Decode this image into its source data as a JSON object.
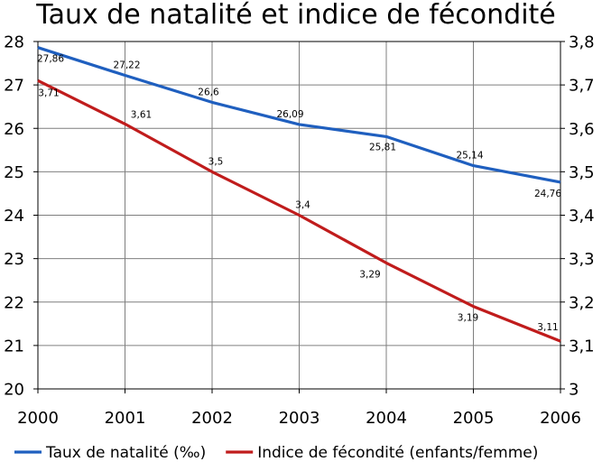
{
  "chart_data": {
    "type": "line",
    "title": "Taux de natalité et indice de fécondité",
    "x": [
      2000,
      2001,
      2002,
      2003,
      2004,
      2005,
      2006
    ],
    "xtick_labels": [
      "2000",
      "2001",
      "2002",
      "2003",
      "2004",
      "2005",
      "2006"
    ],
    "ylim_left": [
      20,
      28
    ],
    "ytick_labels_left": [
      "20",
      "21",
      "22",
      "23",
      "24",
      "25",
      "26",
      "27",
      "28"
    ],
    "ylim_right": [
      3.0,
      3.8
    ],
    "ytick_labels_right": [
      "3",
      "3,1",
      "3,2",
      "3,3",
      "3,4",
      "3,5",
      "3,6",
      "3,7",
      "3,8"
    ],
    "grid": true,
    "legend_position": "bottom",
    "series": [
      {
        "name": "Taux de natalité (‰)",
        "axis": "left",
        "color": "#1f5fbf",
        "values": [
          27.86,
          27.22,
          26.6,
          26.09,
          25.81,
          25.14,
          24.76
        ],
        "labels": [
          "27,86",
          "27,22",
          "26,6",
          "26,09",
          "25,81",
          "25,14",
          "24,76"
        ]
      },
      {
        "name": "Indice de fécondité (enfants/femme)",
        "axis": "right",
        "color": "#c01c1c",
        "values": [
          3.71,
          3.61,
          3.5,
          3.4,
          3.29,
          3.19,
          3.11
        ],
        "labels": [
          "3,71",
          "3,61",
          "3,5",
          "3,4",
          "3,29",
          "3,19",
          "3,11"
        ]
      }
    ]
  }
}
